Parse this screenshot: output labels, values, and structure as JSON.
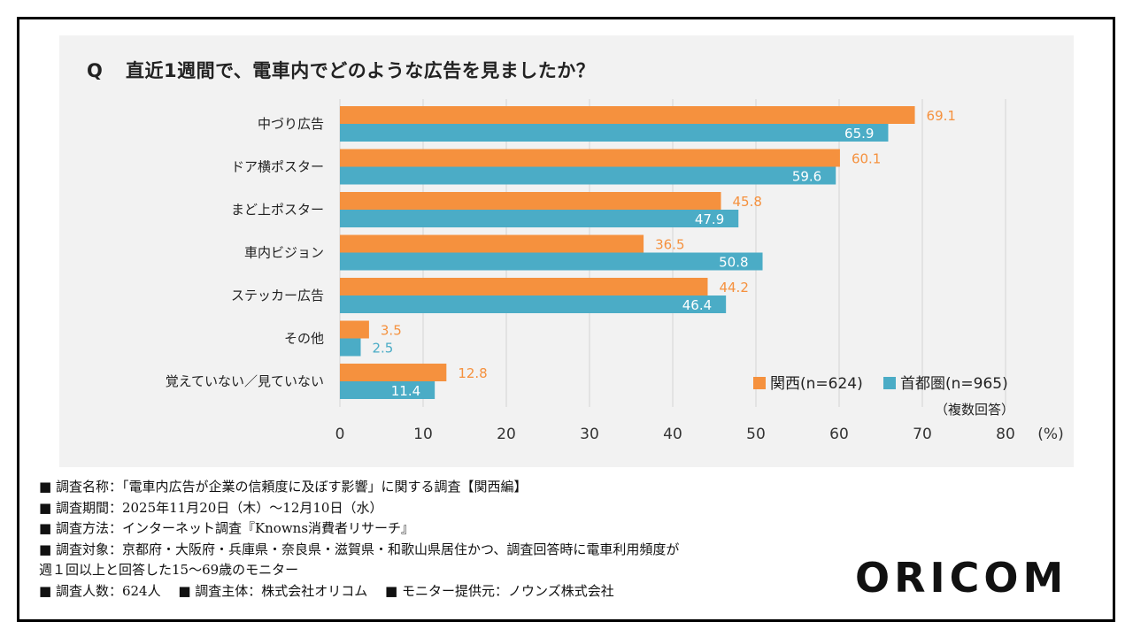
{
  "question": {
    "prefix": "Q",
    "text": "直近1週間で、電車内でどのような広告を見ましたか？"
  },
  "chart_data": {
    "type": "bar",
    "orientation": "horizontal",
    "title": "直近1週間で、電車内でどのような広告を見ましたか？",
    "categories": [
      "中づり広告",
      "ドア横ポスター",
      "まど上ポスター",
      "車内ビジョン",
      "ステッカー広告",
      "その他",
      "覚えていない／見ていない"
    ],
    "series": [
      {
        "name": "関西(n=624)",
        "color": "#f5913e",
        "values": [
          69.1,
          60.1,
          45.8,
          36.5,
          44.2,
          3.5,
          12.8
        ]
      },
      {
        "name": "首都圏(n=965)",
        "color": "#4bacc6",
        "values": [
          65.9,
          59.6,
          47.9,
          50.8,
          46.4,
          2.5,
          11.4
        ]
      }
    ],
    "xlim": [
      0,
      80
    ],
    "xticks": [
      0,
      10,
      20,
      30,
      40,
      50,
      60,
      70,
      80
    ],
    "xunit": "(%)",
    "legend_note": "（複数回答）",
    "legend_position": "bottom-right",
    "grid": true
  },
  "notes": [
    "■ 調査名称：「電車内広告が企業の信頼度に及ぼす影響」に関する調査【関西編】",
    "■ 調査期間：2025年11月20日（木）～12月10日（水）",
    "■ 調査方法：インターネット調査『Knowns消費者リサーチ』",
    "■ 調査対象：京都府・大阪府・兵庫県・奈良県・滋賀県・和歌山県居住かつ、調査回答時に電車利用頻度が",
    "週１回以上と回答した15～69歳のモニター",
    "■ 調査人数：624人　 ■ 調査主体：株式会社オリコム　 ■ モニター提供元：ノウンズ株式会社"
  ],
  "brand": "ORICOM"
}
